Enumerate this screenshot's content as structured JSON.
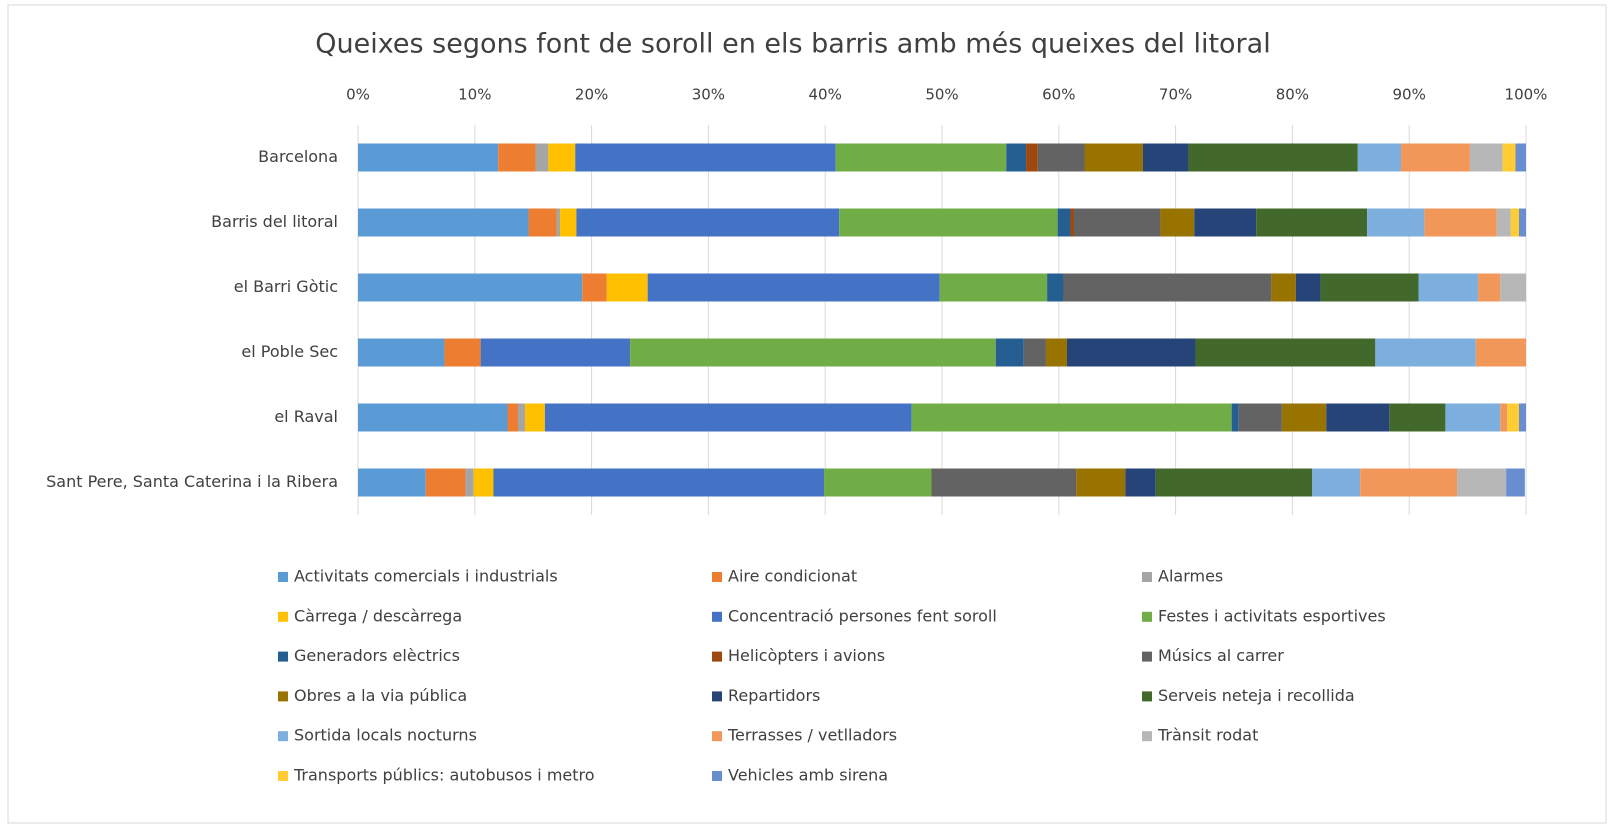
{
  "chart_data": {
    "type": "stacked_barh",
    "title": "Queixes segons font de soroll en els barris amb més queixes del litoral",
    "categories": [
      "Barcelona",
      "Barris del litoral",
      "el Barri Gòtic",
      "el Poble Sec",
      "el Raval",
      "Sant Pere, Santa Caterina i la Ribera"
    ],
    "xlim": [
      0,
      100
    ],
    "xticks": [
      {
        "value": 0,
        "label": "0%"
      },
      {
        "value": 10,
        "label": "10%"
      },
      {
        "value": 20,
        "label": "20%"
      },
      {
        "value": 30,
        "label": "30%"
      },
      {
        "value": 40,
        "label": "40%"
      },
      {
        "value": 50,
        "label": "50%"
      },
      {
        "value": 60,
        "label": "60%"
      },
      {
        "value": 70,
        "label": "70%"
      },
      {
        "value": 80,
        "label": "80%"
      },
      {
        "value": 90,
        "label": "90%"
      },
      {
        "value": 100,
        "label": "100%"
      }
    ],
    "grid": true,
    "series": [
      {
        "name": "Activitats comercials  i industrials",
        "color": "#5b9bd5",
        "values": [
          12.0,
          14.6,
          19.2,
          7.4,
          12.8,
          5.8
        ]
      },
      {
        "name": "Aire condicionat",
        "color": "#ed7d31",
        "values": [
          3.2,
          2.4,
          2.1,
          3.1,
          0.9,
          3.4
        ]
      },
      {
        "name": "Alarmes",
        "color": "#a5a5a5",
        "values": [
          1.1,
          0.3,
          0,
          0,
          0.6,
          0.7
        ]
      },
      {
        "name": "Càrrega / descàrrega",
        "color": "#ffc000",
        "values": [
          2.3,
          1.4,
          3.5,
          0,
          1.7,
          1.7
        ]
      },
      {
        "name": "Concentració persones fent soroll",
        "color": "#4472c4",
        "values": [
          22.3,
          22.5,
          25.0,
          12.8,
          31.4,
          28.3
        ]
      },
      {
        "name": "Festes i activitats esportives",
        "color": "#70ad47",
        "values": [
          14.6,
          18.7,
          9.2,
          31.3,
          27.4,
          9.2
        ]
      },
      {
        "name": "Generadors elèctrics",
        "color": "#255e91",
        "values": [
          1.7,
          1.1,
          1.4,
          2.4,
          0.6,
          0
        ]
      },
      {
        "name": "Helicòpters i avions",
        "color": "#9e480e",
        "values": [
          1.0,
          0.3,
          0,
          0,
          0,
          0
        ]
      },
      {
        "name": "Músics al carrer",
        "color": "#636363",
        "values": [
          4.0,
          7.4,
          17.8,
          1.9,
          3.7,
          12.4
        ]
      },
      {
        "name": "Obres a la via pública",
        "color": "#997300",
        "values": [
          5.0,
          2.9,
          2.1,
          1.8,
          3.8,
          4.2
        ]
      },
      {
        "name": "Repartidors",
        "color": "#264478",
        "values": [
          3.9,
          5.3,
          2.1,
          11.0,
          5.4,
          2.6
        ]
      },
      {
        "name": "Serveis neteja i recollida",
        "color": "#43682b",
        "values": [
          14.5,
          9.5,
          8.4,
          15.4,
          4.8,
          13.4
        ]
      },
      {
        "name": "Sortida locals nocturns",
        "color": "#7cafdd",
        "values": [
          3.7,
          4.9,
          5.1,
          8.6,
          4.7,
          4.1
        ]
      },
      {
        "name": "Terrasses / vetlladors",
        "color": "#f1975a",
        "values": [
          5.9,
          6.2,
          1.9,
          4.3,
          0.6,
          8.3
        ]
      },
      {
        "name": "Trànsit rodat",
        "color": "#b7b7b7",
        "values": [
          2.8,
          1.2,
          2.2,
          0,
          0,
          4.2
        ]
      },
      {
        "name": "Transports públics: autobusos i metro",
        "color": "#ffcd33",
        "values": [
          1.1,
          0.7,
          0,
          0,
          1.0,
          0
        ]
      },
      {
        "name": "Vehicles amb sirena",
        "color": "#698ed0",
        "values": [
          0.9,
          0.6,
          0,
          0,
          0.6,
          1.6
        ]
      }
    ]
  }
}
